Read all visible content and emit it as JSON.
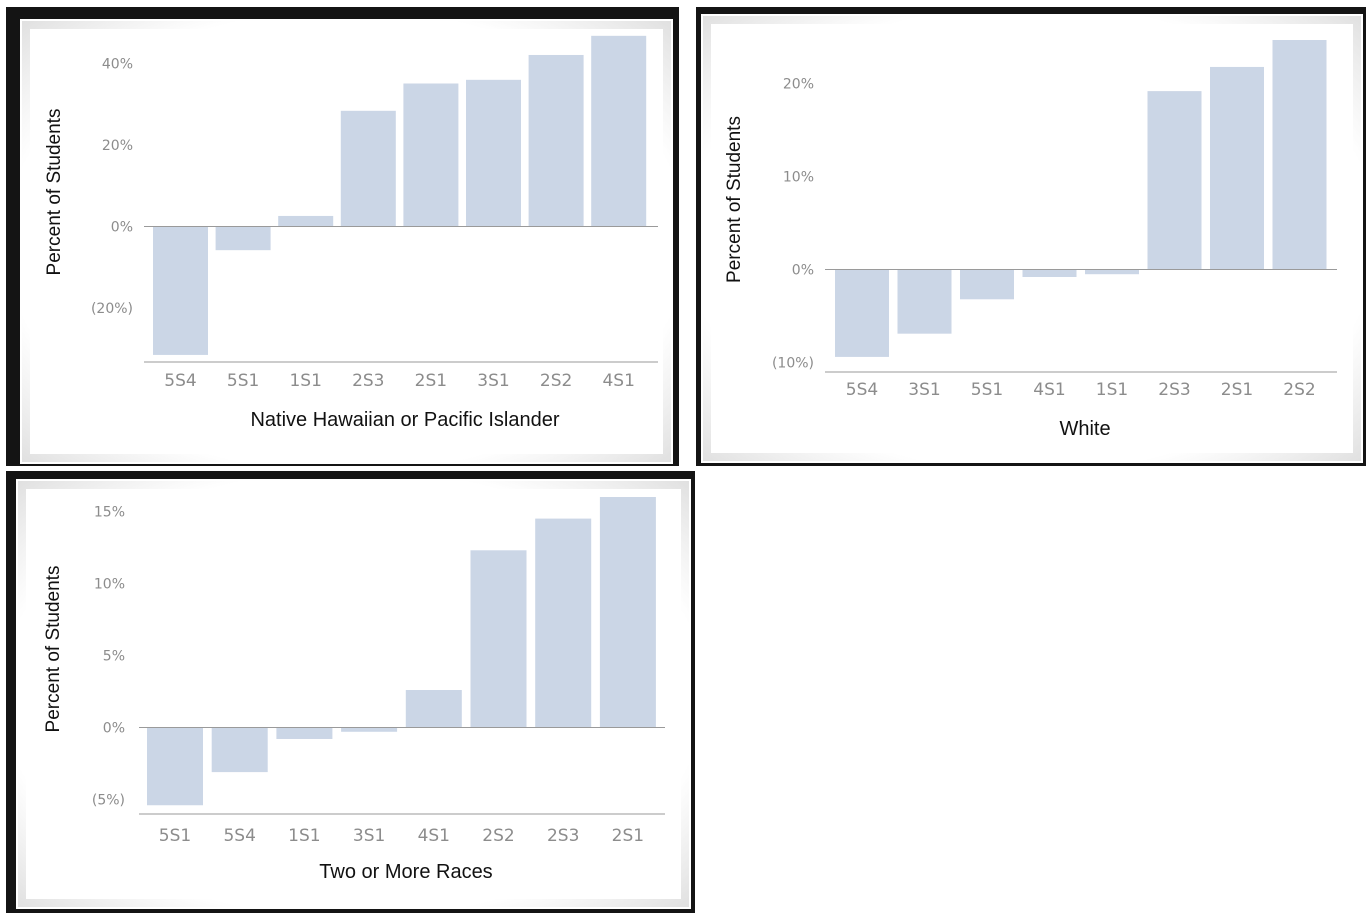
{
  "y_axis_label": "Percent of Students",
  "chart_data": [
    {
      "type": "bar",
      "xlabel": "Native Hawaiian or Pacific Islander",
      "ylabel": "Percent of Students",
      "categories": [
        "5S4",
        "5S1",
        "1S1",
        "2S3",
        "2S1",
        "3S1",
        "2S2",
        "4S1"
      ],
      "values": [
        -31.5,
        -5.8,
        2.6,
        28.4,
        35.1,
        36.0,
        42.1,
        46.8
      ],
      "ylim": [
        -32.5,
        47
      ],
      "yticks": [
        40,
        20,
        0,
        -20
      ],
      "ytick_labels": [
        "40%",
        "20%",
        "0%",
        "(20%)"
      ],
      "bar_color": "#cbd6e6",
      "grid": false
    },
    {
      "type": "bar",
      "xlabel": "White",
      "ylabel": "Percent of Students",
      "categories": [
        "5S4",
        "3S1",
        "5S1",
        "4S1",
        "1S1",
        "2S3",
        "2S1",
        "2S2"
      ],
      "values": [
        -9.4,
        -6.9,
        -3.2,
        -0.8,
        -0.5,
        19.2,
        21.8,
        24.7
      ],
      "ylim": [
        -10.7,
        24.7
      ],
      "yticks": [
        20,
        10,
        0,
        -10
      ],
      "ytick_labels": [
        "20%",
        "10%",
        "0%",
        "(10%)"
      ],
      "bar_color": "#cbd6e6",
      "grid": false
    },
    {
      "type": "bar",
      "xlabel": "Two or More Races",
      "ylabel": "Percent of Students",
      "categories": [
        "5S1",
        "5S4",
        "1S1",
        "3S1",
        "4S1",
        "2S2",
        "2S3",
        "2S1"
      ],
      "values": [
        -5.4,
        -3.1,
        -0.8,
        -0.3,
        2.6,
        12.3,
        14.5,
        16.0
      ],
      "ylim": [
        -5.8,
        16.0
      ],
      "yticks": [
        15,
        10,
        5,
        0,
        -5
      ],
      "ytick_labels": [
        "15%",
        "10%",
        "5%",
        "0%",
        "(5%)"
      ],
      "bar_color": "#cbd6e6",
      "grid": false
    }
  ]
}
